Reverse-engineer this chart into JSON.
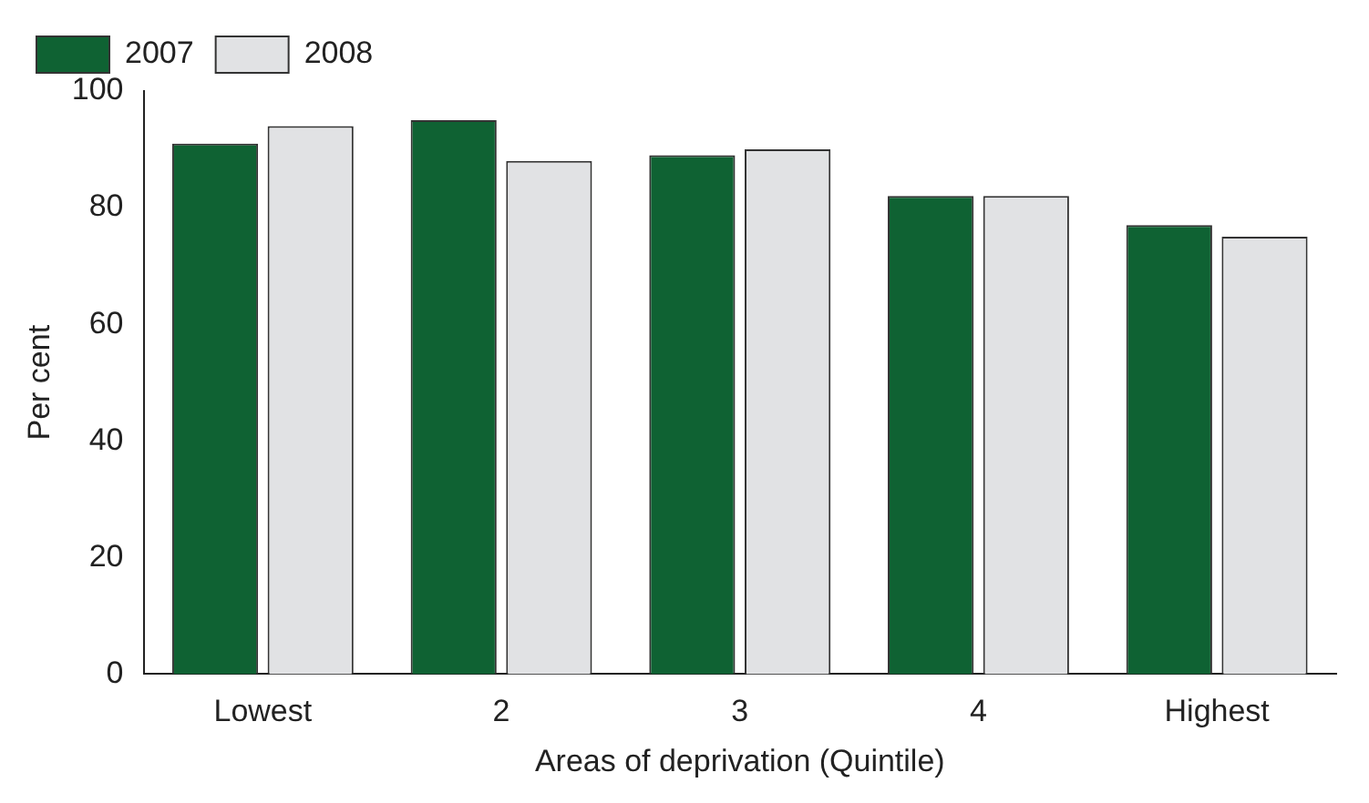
{
  "chart_data": {
    "type": "bar",
    "xlabel": "Areas of deprivation (Quintile)",
    "ylabel": "Per cent",
    "categories": [
      "Lowest",
      "2",
      "3",
      "4",
      "Highest"
    ],
    "series": [
      {
        "name": "2007",
        "color": "#0f6233",
        "values": [
          91,
          95,
          89,
          82,
          77
        ]
      },
      {
        "name": "2008",
        "color": "#e1e2e4",
        "values": [
          94,
          88,
          90,
          82,
          75
        ]
      }
    ],
    "ylim": [
      0,
      100
    ],
    "yticks": [
      0,
      20,
      40,
      60,
      80,
      100
    ],
    "grid": false,
    "legend": "top left"
  }
}
